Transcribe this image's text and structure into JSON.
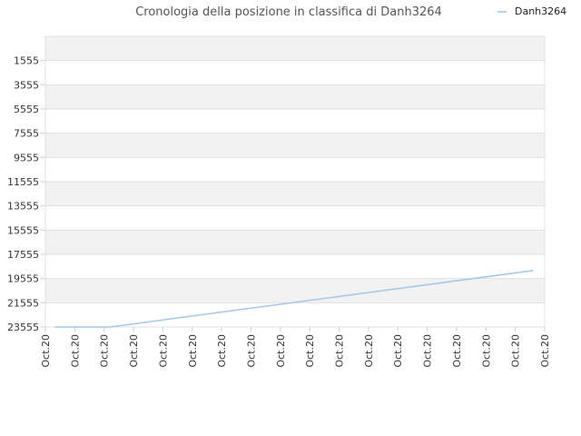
{
  "chart_data": {
    "type": "line",
    "title": "Cronologia della posizione in classifica di Danh3264",
    "xlabel": "",
    "ylabel": "",
    "y_inverted": true,
    "ylim": [
      23555,
      0
    ],
    "y_ticks": [
      1555,
      3555,
      5555,
      7555,
      9555,
      11555,
      13555,
      15555,
      17555,
      19555,
      21555,
      23555
    ],
    "x_ticks": [
      "Oct.20",
      "Oct.20",
      "Oct.20",
      "Oct.20",
      "Oct.20",
      "Oct.20",
      "Oct.20",
      "Oct.20",
      "Oct.20",
      "Oct.20",
      "Oct.20",
      "Oct.20",
      "Oct.20",
      "Oct.20",
      "Oct.20",
      "Oct.20",
      "Oct.20",
      "Oct.20"
    ],
    "legend": {
      "position": "top-right"
    },
    "series": [
      {
        "name": "Danh3264",
        "color": "#a0c8ec",
        "x": [
          0.3,
          2.2,
          16.6
        ],
        "values": [
          23555,
          23555,
          18900
        ]
      }
    ],
    "band_colors": [
      "#f2f2f2",
      "#ffffff"
    ],
    "grid_color": "#e0e0e0"
  }
}
